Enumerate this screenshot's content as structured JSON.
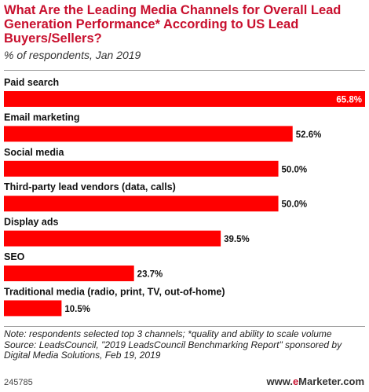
{
  "title": "What Are the Leading Media Channels for Overall Lead Generation Performance* According to US Lead Buyers/Sellers?",
  "subtitle": "% of respondents, Jan 2019",
  "chart_data": {
    "type": "bar",
    "orientation": "horizontal",
    "categories": [
      "Paid search",
      "Email marketing",
      "Social media",
      "Third-party lead vendors (data, calls)",
      "Display ads",
      "SEO",
      "Traditional media (radio, print, TV, out-of-home)"
    ],
    "values": [
      65.8,
      52.6,
      50.0,
      50.0,
      39.5,
      23.7,
      10.5
    ],
    "value_labels": [
      "65.8%",
      "52.6%",
      "50.0%",
      "50.0%",
      "39.5%",
      "23.7%",
      "10.5%"
    ],
    "xlim": [
      0,
      65.8
    ],
    "bar_color": "#ff0000",
    "grid": false,
    "legend": "none"
  },
  "note": "Note: respondents selected top 3 channels; *quality and ability to scale volume",
  "source": "Source: LeadsCouncil, \"2019 LeadsCouncil Benchmarking Report\" sponsored by Digital Media Solutions, Feb 19, 2019",
  "chart_id": "245785",
  "brand": {
    "prefix": "www.",
    "accent": "e",
    "name": "Marketer",
    "suffix": ".com"
  },
  "colors": {
    "title": "#c8102e",
    "bar": "#ff0000",
    "value_inside": "#ffffff",
    "value_outside": "#111111"
  }
}
